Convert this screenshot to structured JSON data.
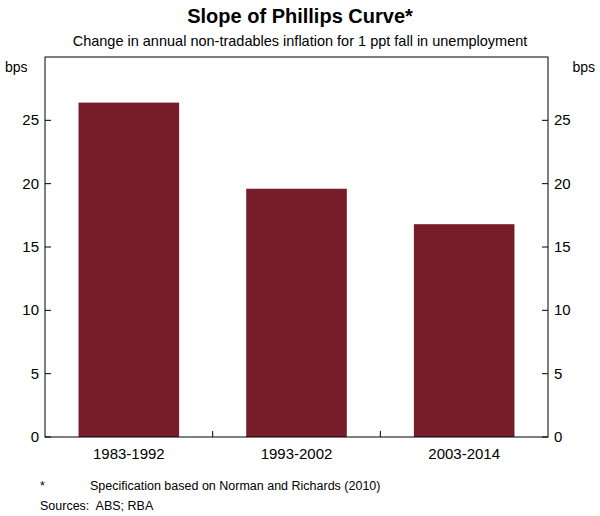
{
  "chart_data": {
    "type": "bar",
    "title": "Slope of Phillips Curve*",
    "subtitle": "Change in annual non-tradables inflation for 1 ppt fall in unemployment",
    "y_label": "bps",
    "categories": [
      "1983-1992",
      "1993-2002",
      "2003-2014"
    ],
    "values": [
      26.4,
      19.6,
      16.8
    ],
    "color": "#771c2a",
    "ylim": [
      0,
      30
    ],
    "yticks": [
      0,
      5,
      10,
      15,
      20,
      25
    ],
    "grid": false,
    "footnote_marker": "*",
    "footnote": "Specification based on Norman and Richards (2010)",
    "sources": "Sources:  ABS; RBA"
  }
}
